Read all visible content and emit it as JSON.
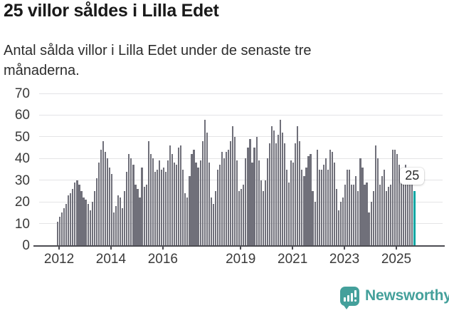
{
  "title": "25 villor såldes i Lilla Edet",
  "subtitle": "Antal sålda villor i Lilla Edet under de senaste tre månaderna.",
  "chart_data": {
    "type": "bar",
    "title": "25 villor såldes i Lilla Edet",
    "ylabel": "",
    "xlabel": "",
    "ylim": [
      0,
      70
    ],
    "yticks": [
      0,
      10,
      20,
      30,
      40,
      50,
      60,
      70
    ],
    "grid": true,
    "bar_color": "#70707a",
    "highlight_color": "#00a6a2",
    "x_unit": "month",
    "values": [
      11,
      13,
      15,
      17,
      19,
      23,
      24,
      26,
      29,
      30,
      28,
      25,
      22,
      21,
      19,
      16,
      20,
      25,
      31,
      38,
      44,
      48,
      43,
      40,
      36,
      33,
      15,
      18,
      23,
      22,
      17,
      25,
      34,
      42,
      40,
      37,
      28,
      26,
      22,
      36,
      27,
      28,
      48,
      42,
      40,
      34,
      35,
      39,
      35,
      36,
      34,
      39,
      46,
      42,
      38,
      37,
      45,
      46,
      35,
      24,
      22,
      32,
      42,
      44,
      38,
      36,
      39,
      48,
      58,
      52,
      38,
      22,
      19,
      25,
      35,
      37,
      43,
      40,
      43,
      44,
      48,
      55,
      50,
      39,
      25,
      26,
      28,
      40,
      45,
      49,
      38,
      45,
      50,
      39,
      30,
      25,
      30,
      40,
      47,
      55,
      53,
      47,
      51,
      58,
      52,
      47,
      35,
      29,
      39,
      38,
      47,
      55,
      48,
      35,
      32,
      36,
      41,
      42,
      25,
      20,
      44,
      35,
      35,
      37,
      40,
      35,
      44,
      43,
      38,
      26,
      16,
      20,
      22,
      28,
      35,
      35,
      28,
      28,
      32,
      25,
      40,
      36,
      28,
      29,
      15,
      20,
      25,
      46,
      40,
      28,
      32,
      35,
      25,
      27,
      28,
      44,
      44,
      42,
      37,
      30,
      33,
      37,
      35,
      31,
      28,
      25
    ],
    "highlight": {
      "index": 165,
      "value": 25,
      "label": "25"
    },
    "xticks": [
      {
        "label": "2012",
        "month_index": 1
      },
      {
        "label": "2014",
        "month_index": 25
      },
      {
        "label": "2016",
        "month_index": 49
      },
      {
        "label": "2019",
        "month_index": 85
      },
      {
        "label": "2021",
        "month_index": 109
      },
      {
        "label": "2023",
        "month_index": 133
      },
      {
        "label": "2025",
        "month_index": 157
      }
    ]
  },
  "branding": {
    "name": "Newsworthy",
    "color": "#44a09b",
    "icon": "bar-chart-speech-bubble-icon"
  }
}
